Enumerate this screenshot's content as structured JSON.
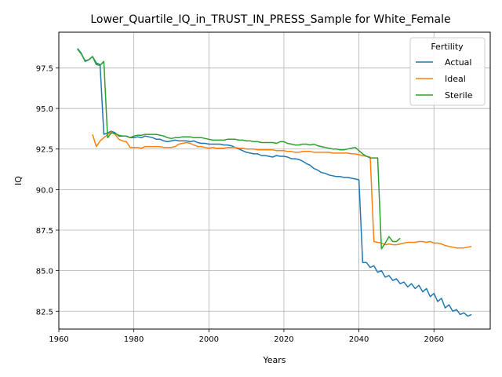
{
  "chart_data": {
    "type": "line",
    "title": "Lower_Quartile_IQ_in_TRUST_IN_PRESS_Sample for White_Female",
    "xlabel": "Years",
    "ylabel": "IQ",
    "xlim": [
      1960,
      2075
    ],
    "ylim": [
      81.4,
      99.7
    ],
    "xticks": [
      1960,
      1980,
      2000,
      2020,
      2040,
      2060
    ],
    "xtick_labels": [
      "1960",
      "1980",
      "2000",
      "2020",
      "2040",
      "2060"
    ],
    "yticks": [
      82.5,
      85.0,
      87.5,
      90.0,
      92.5,
      95.0,
      97.5
    ],
    "ytick_labels": [
      "82.5",
      "85.0",
      "87.5",
      "90.0",
      "92.5",
      "95.0",
      "97.5"
    ],
    "grid": true,
    "legend": {
      "title": "Fertility",
      "placement": "top-right"
    },
    "series": [
      {
        "name": "Actual",
        "color": "#1f77b4",
        "x": [
          1965,
          1966,
          1967,
          1968,
          1969,
          1970,
          1971,
          1972,
          1973,
          1974,
          1975,
          1976,
          1977,
          1978,
          1979,
          1980,
          1981,
          1982,
          1983,
          1984,
          1985,
          1986,
          1987,
          1988,
          1989,
          1990,
          1991,
          1992,
          1993,
          1994,
          1995,
          1996,
          1997,
          1998,
          1999,
          2000,
          2001,
          2002,
          2003,
          2004,
          2005,
          2006,
          2007,
          2008,
          2009,
          2010,
          2011,
          2012,
          2013,
          2014,
          2015,
          2016,
          2017,
          2018,
          2019,
          2020,
          2021,
          2022,
          2023,
          2024,
          2025,
          2026,
          2027,
          2028,
          2029,
          2030,
          2031,
          2032,
          2033,
          2034,
          2035,
          2036,
          2037,
          2038,
          2039,
          2040,
          2041,
          2042,
          2043,
          2044,
          2045,
          2046,
          2047,
          2048,
          2049,
          2050,
          2051,
          2052,
          2053,
          2054,
          2055,
          2056,
          2057,
          2058,
          2059,
          2060,
          2061,
          2062,
          2063,
          2064,
          2065,
          2066,
          2067,
          2068,
          2069,
          2070
        ],
        "values": [
          98.7,
          98.4,
          97.9,
          98.0,
          98.2,
          97.8,
          97.7,
          93.4,
          93.5,
          93.6,
          93.5,
          93.3,
          93.3,
          93.3,
          93.2,
          93.2,
          93.25,
          93.2,
          93.3,
          93.25,
          93.2,
          93.1,
          93.1,
          93.0,
          92.95,
          93.0,
          93.05,
          93.0,
          93.0,
          93.0,
          92.95,
          93.0,
          92.9,
          92.85,
          92.85,
          92.8,
          92.8,
          92.8,
          92.8,
          92.75,
          92.75,
          92.7,
          92.6,
          92.5,
          92.4,
          92.3,
          92.25,
          92.2,
          92.2,
          92.1,
          92.1,
          92.05,
          92.0,
          92.1,
          92.05,
          92.05,
          92.0,
          91.9,
          91.9,
          91.85,
          91.75,
          91.6,
          91.5,
          91.3,
          91.2,
          91.05,
          91.0,
          90.9,
          90.85,
          90.8,
          90.8,
          90.75,
          90.75,
          90.7,
          90.65,
          90.6,
          85.5,
          85.5,
          85.2,
          85.3,
          84.9,
          85.0,
          84.6,
          84.7,
          84.4,
          84.5,
          84.2,
          84.3,
          84.0,
          84.2,
          83.9,
          84.1,
          83.7,
          83.9,
          83.4,
          83.6,
          83.1,
          83.3,
          82.7,
          82.9,
          82.5,
          82.6,
          82.3,
          82.4,
          82.2,
          82.3
        ]
      },
      {
        "name": "Ideal",
        "color": "#ff7f0e",
        "x": [
          1969,
          1970,
          1971,
          1972,
          1973,
          1974,
          1975,
          1976,
          1977,
          1978,
          1979,
          1980,
          1981,
          1982,
          1983,
          1984,
          1985,
          1986,
          1987,
          1988,
          1989,
          1990,
          1991,
          1992,
          1993,
          1994,
          1995,
          1996,
          1997,
          1998,
          1999,
          2000,
          2001,
          2002,
          2003,
          2004,
          2005,
          2006,
          2007,
          2008,
          2009,
          2010,
          2011,
          2012,
          2013,
          2014,
          2015,
          2016,
          2017,
          2018,
          2019,
          2020,
          2021,
          2022,
          2023,
          2024,
          2025,
          2026,
          2027,
          2028,
          2029,
          2030,
          2031,
          2032,
          2033,
          2034,
          2035,
          2036,
          2037,
          2038,
          2039,
          2040,
          2041,
          2042,
          2043,
          2044,
          2045,
          2046,
          2047,
          2048,
          2049,
          2050,
          2051,
          2052,
          2053,
          2054,
          2055,
          2056,
          2057,
          2058,
          2059,
          2060,
          2061,
          2062,
          2063,
          2064,
          2065,
          2066,
          2067,
          2068,
          2069,
          2070
        ],
        "values": [
          93.4,
          92.65,
          93.0,
          93.2,
          93.4,
          93.55,
          93.4,
          93.1,
          93.0,
          92.95,
          92.6,
          92.6,
          92.6,
          92.55,
          92.65,
          92.65,
          92.65,
          92.65,
          92.65,
          92.6,
          92.6,
          92.6,
          92.65,
          92.8,
          92.85,
          92.9,
          92.85,
          92.75,
          92.65,
          92.65,
          92.6,
          92.55,
          92.6,
          92.55,
          92.55,
          92.55,
          92.6,
          92.6,
          92.6,
          92.55,
          92.55,
          92.5,
          92.5,
          92.5,
          92.45,
          92.45,
          92.45,
          92.45,
          92.45,
          92.4,
          92.4,
          92.4,
          92.35,
          92.35,
          92.3,
          92.3,
          92.35,
          92.35,
          92.35,
          92.3,
          92.3,
          92.3,
          92.3,
          92.3,
          92.25,
          92.25,
          92.25,
          92.25,
          92.25,
          92.2,
          92.2,
          92.15,
          92.1,
          92.05,
          92.0,
          86.8,
          86.75,
          86.7,
          86.6,
          86.65,
          86.6,
          86.6,
          86.65,
          86.7,
          86.75,
          86.75,
          86.75,
          86.8,
          86.8,
          86.75,
          86.8,
          86.7,
          86.7,
          86.65,
          86.55,
          86.5,
          86.45,
          86.4,
          86.4,
          86.4,
          86.45,
          86.5
        ]
      },
      {
        "name": "Sterile",
        "color": "#2ca02c",
        "x": [
          1965,
          1966,
          1967,
          1968,
          1969,
          1970,
          1971,
          1972,
          1973,
          1974,
          1975,
          1976,
          1977,
          1978,
          1979,
          1980,
          1981,
          1982,
          1983,
          1984,
          1985,
          1986,
          1987,
          1988,
          1989,
          1990,
          1991,
          1992,
          1993,
          1994,
          1995,
          1996,
          1997,
          1998,
          1999,
          2000,
          2001,
          2002,
          2003,
          2004,
          2005,
          2006,
          2007,
          2008,
          2009,
          2010,
          2011,
          2012,
          2013,
          2014,
          2015,
          2016,
          2017,
          2018,
          2019,
          2020,
          2021,
          2022,
          2023,
          2024,
          2025,
          2026,
          2027,
          2028,
          2029,
          2030,
          2031,
          2032,
          2033,
          2034,
          2035,
          2036,
          2037,
          2038,
          2039,
          2040,
          2041,
          2042,
          2043,
          2044,
          2045,
          2046,
          2047,
          2048,
          2049,
          2050,
          2051
        ],
        "values": [
          98.65,
          98.35,
          97.95,
          98.0,
          98.2,
          97.7,
          97.65,
          97.9,
          93.2,
          93.5,
          93.45,
          93.35,
          93.3,
          93.3,
          93.2,
          93.3,
          93.35,
          93.35,
          93.4,
          93.4,
          93.4,
          93.4,
          93.35,
          93.3,
          93.2,
          93.15,
          93.2,
          93.2,
          93.25,
          93.25,
          93.25,
          93.2,
          93.2,
          93.2,
          93.15,
          93.1,
          93.05,
          93.05,
          93.05,
          93.05,
          93.1,
          93.1,
          93.1,
          93.05,
          93.05,
          93.0,
          93.0,
          92.95,
          92.95,
          92.9,
          92.9,
          92.9,
          92.9,
          92.85,
          92.95,
          92.95,
          92.85,
          92.8,
          92.75,
          92.75,
          92.8,
          92.8,
          92.75,
          92.8,
          92.7,
          92.65,
          92.6,
          92.55,
          92.5,
          92.5,
          92.45,
          92.45,
          92.5,
          92.55,
          92.6,
          92.4,
          92.2,
          92.05,
          91.95,
          91.95,
          91.95,
          86.35,
          86.7,
          87.1,
          86.8,
          86.8,
          87.0
        ]
      }
    ]
  }
}
